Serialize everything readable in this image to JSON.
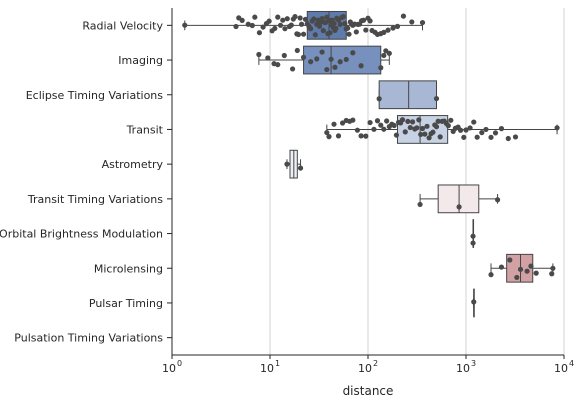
{
  "chart_data": {
    "type": "box",
    "orientation": "horizontal",
    "xlabel": "distance",
    "xscale": "log",
    "xlim": [
      1,
      10000
    ],
    "xticks": [
      {
        "value": 1,
        "base": "10",
        "exp": "0"
      },
      {
        "value": 10,
        "base": "10",
        "exp": "1"
      },
      {
        "value": 100,
        "base": "10",
        "exp": "2"
      },
      {
        "value": 1000,
        "base": "10",
        "exp": "3"
      },
      {
        "value": 10000,
        "base": "10",
        "exp": "4"
      }
    ],
    "grid": "vertical",
    "categories": [
      "Radial Velocity",
      "Imaging",
      "Eclipse Timing Variations",
      "Transit",
      "Astrometry",
      "Transit Timing Variations",
      "Orbital Brightness Modulation",
      "Microlensing",
      "Pulsar Timing",
      "Pulsation Timing Variations"
    ],
    "boxes": [
      {
        "category": "Radial Velocity",
        "color": "#5e7bab",
        "whisker_low": 1.35,
        "q1": 24,
        "median": 40,
        "q3": 60,
        "whisker_high": 360
      },
      {
        "category": "Imaging",
        "color": "#7790bd",
        "whisker_low": 7.7,
        "q1": 22,
        "median": 42,
        "q3": 135,
        "whisker_high": 165
      },
      {
        "category": "Eclipse Timing Variations",
        "color": "#a8b7d4",
        "whisker_low": 130,
        "q1": 130,
        "median": 260,
        "q3": 500,
        "whisker_high": 500
      },
      {
        "category": "Transit",
        "color": "#c7d2e4",
        "whisker_low": 38,
        "q1": 200,
        "median": 340,
        "q3": 650,
        "whisker_high": 8500
      },
      {
        "category": "Astrometry",
        "color": "#eceff6",
        "whisker_low": 14.9,
        "q1": 16,
        "median": 17.5,
        "q3": 19,
        "whisker_high": 20.5
      },
      {
        "category": "Transit Timing Variations",
        "color": "#f3e9ea",
        "whisker_low": 340,
        "q1": 520,
        "median": 850,
        "q3": 1350,
        "whisker_high": 2100
      },
      {
        "category": "Orbital Brightness Modulation",
        "color": "#ead7d9",
        "whisker_low": 1180,
        "q1": 1180,
        "median": 1180,
        "q3": 1180,
        "whisker_high": 1180
      },
      {
        "category": "Microlensing",
        "color": "#d2a1a4",
        "whisker_low": 1800,
        "q1": 2600,
        "median": 3600,
        "q3": 4800,
        "whisker_high": 7700
      },
      {
        "category": "Pulsar Timing",
        "color": "#c98f93",
        "whisker_low": 1200,
        "q1": 1200,
        "median": 1200,
        "q3": 1200,
        "whisker_high": 1200
      },
      {
        "category": "Pulsation Timing Variations",
        "color": "#c2868a",
        "whisker_low": null,
        "q1": null,
        "median": null,
        "q3": null,
        "whisker_high": null
      }
    ],
    "points": {
      "Radial Velocity": [
        1.35,
        4.5,
        4.8,
        5.2,
        6,
        6.6,
        7,
        7.8,
        8.5,
        9.2,
        9.8,
        10.5,
        11.2,
        12,
        12.8,
        13.5,
        14.2,
        15,
        15.8,
        16.5,
        17.3,
        18,
        18.8,
        19.5,
        20.3,
        21,
        22,
        23,
        24,
        25,
        26,
        27,
        28,
        29,
        30,
        31,
        32,
        33,
        34,
        35,
        36,
        37,
        38,
        39,
        40,
        41,
        42,
        43,
        44,
        45,
        46,
        47,
        48,
        50,
        52,
        54,
        56,
        58,
        60,
        62,
        64,
        66,
        68,
        70,
        73,
        76,
        79,
        82,
        86,
        90,
        95,
        100,
        105,
        110,
        118,
        125,
        135,
        145,
        160,
        180,
        200,
        230,
        280,
        360
      ],
      "Imaging": [
        7.7,
        9.5,
        11,
        12,
        14,
        17,
        19,
        22,
        26,
        30,
        34,
        38,
        42,
        46,
        52,
        60,
        70,
        85,
        135,
        145,
        152,
        165
      ],
      "Eclipse Timing Variations": [
        130,
        500
      ],
      "Transit": [
        38,
        40,
        45,
        50,
        55,
        60,
        65,
        70,
        78,
        85,
        95,
        105,
        115,
        125,
        135,
        145,
        155,
        165,
        175,
        185,
        195,
        205,
        215,
        225,
        240,
        255,
        270,
        285,
        300,
        315,
        330,
        345,
        360,
        380,
        400,
        420,
        440,
        460,
        480,
        500,
        520,
        545,
        570,
        600,
        630,
        660,
        700,
        740,
        780,
        830,
        880,
        950,
        1000,
        1100,
        1200,
        1300,
        1450,
        1600,
        1800,
        2000,
        2300,
        2700,
        3200,
        8500
      ],
      "Astrometry": [
        14.9,
        20.5
      ],
      "Transit Timing Variations": [
        340,
        850,
        2100
      ],
      "Orbital Brightness Modulation": [
        1180,
        1180
      ],
      "Microlensing": [
        1800,
        2300,
        2800,
        3300,
        3600,
        4200,
        4600,
        5200,
        7500,
        7700
      ],
      "Pulsar Timing": [
        1200
      ],
      "Pulsation Timing Variations": []
    }
  }
}
